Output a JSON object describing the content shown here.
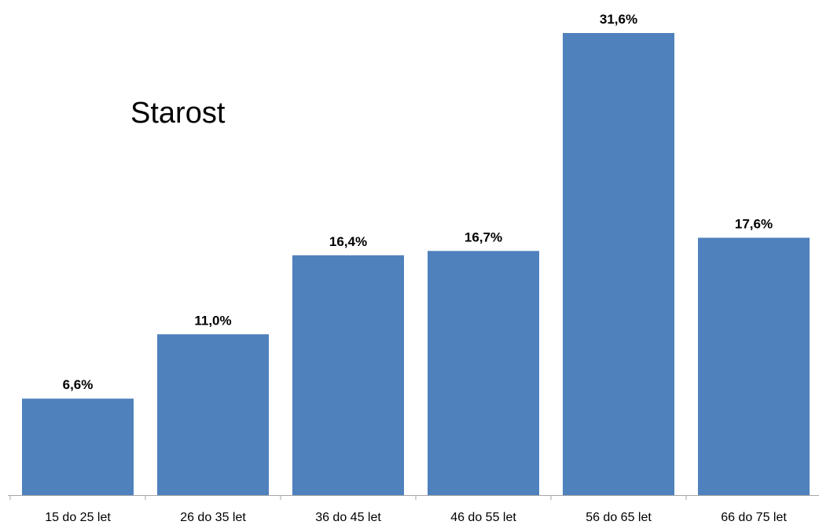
{
  "chart_data": {
    "type": "bar",
    "title": "Starost",
    "categories": [
      "15 do 25 let",
      "26 do 35 let",
      "36 do 45 let",
      "46 do 55 let",
      "56 do 65 let",
      "66 do 75 let"
    ],
    "values": [
      6.6,
      11.0,
      16.4,
      16.7,
      31.6,
      17.6
    ],
    "data_labels": [
      "6,6%",
      "11,0%",
      "16,4%",
      "16,7%",
      "31,6%",
      "17,6%"
    ],
    "unit": "%",
    "ylim": [
      0,
      31.6
    ],
    "grid": false,
    "legend": "none",
    "colors": {
      "bar": "#4f81bd",
      "axis": "#a6a6a6",
      "text": "#000000"
    }
  }
}
